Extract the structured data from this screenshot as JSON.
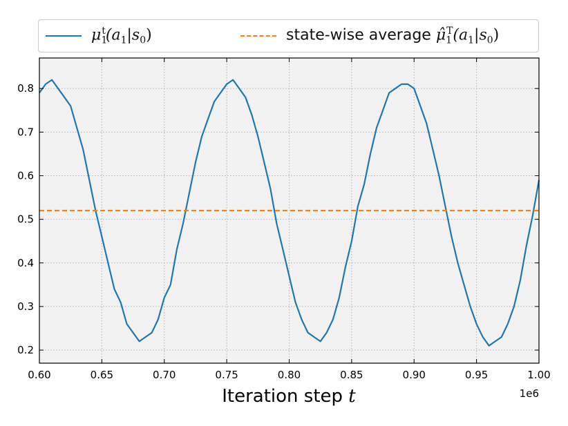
{
  "chart_data": {
    "type": "line",
    "xlabel": "Iteration step",
    "xlabel_var": "t",
    "x_offset_label": "1e6",
    "xlim": [
      0.6,
      1.0
    ],
    "ylim": [
      0.17,
      0.87
    ],
    "x_ticks": [
      0.6,
      0.65,
      0.7,
      0.75,
      0.8,
      0.85,
      0.9,
      0.95,
      1.0
    ],
    "x_tick_labels": [
      "0.60",
      "0.65",
      "0.70",
      "0.75",
      "0.80",
      "0.85",
      "0.90",
      "0.95",
      "1.00"
    ],
    "y_ticks": [
      0.2,
      0.3,
      0.4,
      0.5,
      0.6,
      0.7,
      0.8
    ],
    "y_tick_labels": [
      "0.2",
      "0.3",
      "0.4",
      "0.5",
      "0.6",
      "0.7",
      "0.8"
    ],
    "grid": true,
    "legend_position": "top",
    "series": [
      {
        "name": "μ1t(a1|s0)",
        "style": "solid",
        "color": "#1f77b4",
        "x": [
          0.6,
          0.605,
          0.61,
          0.615,
          0.62,
          0.625,
          0.63,
          0.635,
          0.64,
          0.645,
          0.65,
          0.655,
          0.66,
          0.665,
          0.67,
          0.675,
          0.68,
          0.685,
          0.69,
          0.695,
          0.7,
          0.705,
          0.71,
          0.715,
          0.72,
          0.725,
          0.73,
          0.735,
          0.74,
          0.745,
          0.75,
          0.755,
          0.76,
          0.765,
          0.77,
          0.775,
          0.78,
          0.785,
          0.79,
          0.795,
          0.8,
          0.805,
          0.81,
          0.815,
          0.82,
          0.825,
          0.83,
          0.835,
          0.84,
          0.845,
          0.85,
          0.855,
          0.86,
          0.865,
          0.87,
          0.875,
          0.88,
          0.885,
          0.89,
          0.895,
          0.9,
          0.905,
          0.91,
          0.915,
          0.92,
          0.925,
          0.93,
          0.935,
          0.94,
          0.945,
          0.95,
          0.955,
          0.96,
          0.965,
          0.97,
          0.975,
          0.98,
          0.985,
          0.99,
          0.995,
          1.0
        ],
        "y": [
          0.79,
          0.81,
          0.82,
          0.8,
          0.78,
          0.76,
          0.71,
          0.66,
          0.59,
          0.52,
          0.46,
          0.4,
          0.34,
          0.31,
          0.26,
          0.24,
          0.22,
          0.23,
          0.24,
          0.27,
          0.32,
          0.35,
          0.43,
          0.49,
          0.56,
          0.63,
          0.69,
          0.73,
          0.77,
          0.79,
          0.81,
          0.82,
          0.8,
          0.78,
          0.74,
          0.69,
          0.63,
          0.57,
          0.49,
          0.43,
          0.37,
          0.31,
          0.27,
          0.24,
          0.23,
          0.22,
          0.24,
          0.27,
          0.32,
          0.39,
          0.45,
          0.53,
          0.58,
          0.65,
          0.71,
          0.75,
          0.79,
          0.8,
          0.81,
          0.81,
          0.8,
          0.76,
          0.72,
          0.66,
          0.6,
          0.53,
          0.46,
          0.4,
          0.35,
          0.3,
          0.26,
          0.23,
          0.21,
          0.22,
          0.23,
          0.26,
          0.3,
          0.36,
          0.44,
          0.51,
          0.59
        ]
      },
      {
        "name": "state-wise average μ̂1T(a1|s0)",
        "style": "dashed",
        "color": "#ff7f0e",
        "x": [
          0.6,
          1.0
        ],
        "y": [
          0.52,
          0.52
        ]
      }
    ]
  },
  "legend": {
    "series1": {
      "symbol": "μ",
      "sub": "1",
      "sup": "t",
      "arg": "(a",
      "arg_sub": "1",
      "arg_rest": "|s",
      "arg_sub2": "0",
      "arg_close": ")"
    },
    "series2": {
      "prefix": "state-wise average ",
      "symbol": "μ̂",
      "sub": "1",
      "sup": "T",
      "arg": "(a",
      "arg_sub": "1",
      "arg_rest": "|s",
      "arg_sub2": "0",
      "arg_close": ")"
    }
  }
}
